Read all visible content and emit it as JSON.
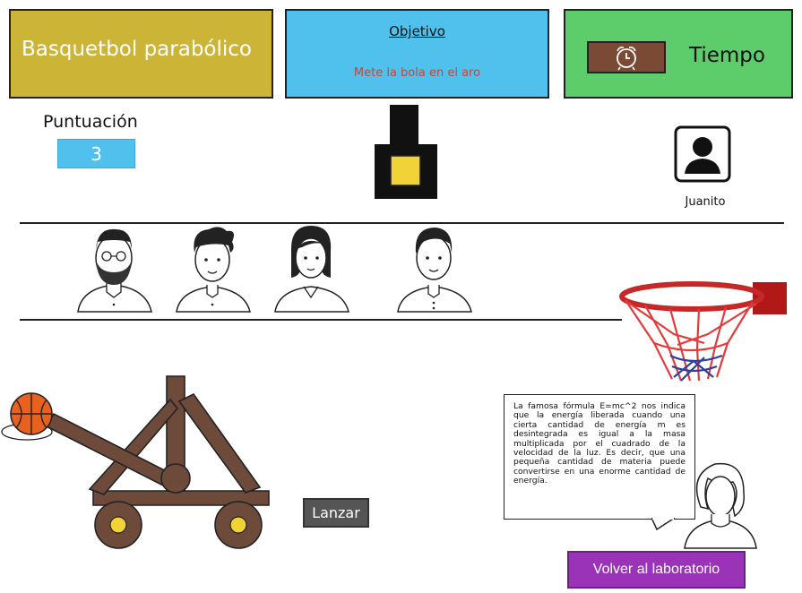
{
  "header": {
    "title": "Basquetbol parabólico",
    "objective_heading": "Objetivo",
    "objective_text": "Mete la bola en el aro",
    "time_label": "Tiempo",
    "clock_icon": "alarm-clock-icon"
  },
  "score": {
    "label": "Puntuación",
    "value": "3"
  },
  "user": {
    "name": "Juanito",
    "avatar_icon": "user-silhouette-icon"
  },
  "players": [
    {
      "icon": "bearded-man-avatar-icon"
    },
    {
      "icon": "curly-hair-man-avatar-icon"
    },
    {
      "icon": "woman-avatar-icon"
    },
    {
      "icon": "man-avatar-icon"
    }
  ],
  "game": {
    "launch_label": "Lanzar",
    "hoop_icon": "basketball-hoop-icon",
    "catapult_icon": "catapult-icon",
    "ball_icon": "basketball-icon"
  },
  "narration": {
    "text": "La famosa fórmula E=mc^2 nos indica que la energía liberada cuando una cierta cantidad de energía m es desintegrada es igual a la masa multiplicada por el cuadrado de la velocidad de la luz. Es decir, que una pequeña cantidad de materia puede convertirse en una enorme cantidad de energía."
  },
  "footer": {
    "back_label": "Volver al laboratorio"
  },
  "colors": {
    "title_bg": "#ccb536",
    "objective_bg": "#4fc1ec",
    "objective_text": "#c4473a",
    "time_bg": "#5dcc6a",
    "clock_bg": "#7a4a35",
    "back_button_bg": "#9b33b8",
    "launch_button_bg": "#555555"
  }
}
